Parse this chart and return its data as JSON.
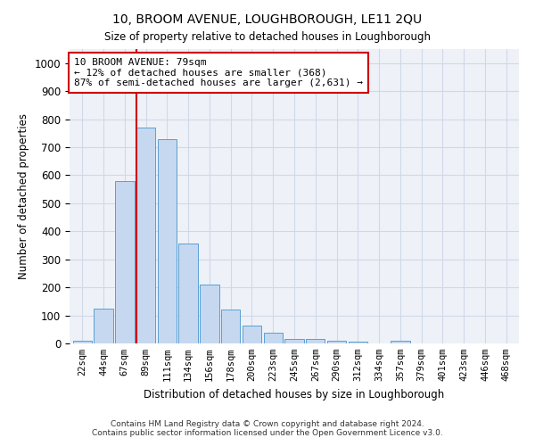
{
  "title": "10, BROOM AVENUE, LOUGHBOROUGH, LE11 2QU",
  "subtitle": "Size of property relative to detached houses in Loughborough",
  "xlabel": "Distribution of detached houses by size in Loughborough",
  "ylabel": "Number of detached properties",
  "categories": [
    "22sqm",
    "44sqm",
    "67sqm",
    "89sqm",
    "111sqm",
    "134sqm",
    "156sqm",
    "178sqm",
    "200sqm",
    "223sqm",
    "245sqm",
    "267sqm",
    "290sqm",
    "312sqm",
    "334sqm",
    "357sqm",
    "379sqm",
    "401sqm",
    "423sqm",
    "446sqm",
    "468sqm"
  ],
  "values": [
    10,
    125,
    580,
    770,
    730,
    355,
    210,
    120,
    65,
    38,
    15,
    15,
    8,
    5,
    0,
    8,
    0,
    0,
    0,
    0,
    0
  ],
  "bar_color": "#c5d8f0",
  "bar_edge_color": "#5a9fd4",
  "red_line_index": 3,
  "annotation_text": "10 BROOM AVENUE: 79sqm\n← 12% of detached houses are smaller (368)\n87% of semi-detached houses are larger (2,631) →",
  "annotation_box_color": "#ffffff",
  "annotation_box_edge_color": "#cc0000",
  "ylim": [
    0,
    1050
  ],
  "yticks": [
    0,
    100,
    200,
    300,
    400,
    500,
    600,
    700,
    800,
    900,
    1000
  ],
  "grid_color": "#d0d8e8",
  "background_color": "#eef2f8",
  "footer1": "Contains HM Land Registry data © Crown copyright and database right 2024.",
  "footer2": "Contains public sector information licensed under the Open Government Licence v3.0."
}
